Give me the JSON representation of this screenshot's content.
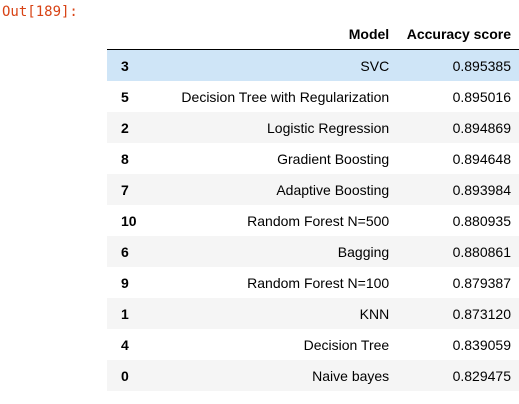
{
  "output_prompt": "Out[189]:",
  "table": {
    "columns": {
      "index": "",
      "model": "Model",
      "accuracy": "Accuracy score"
    },
    "rows": [
      {
        "index": "3",
        "model": "SVC",
        "accuracy": "0.895385"
      },
      {
        "index": "5",
        "model": "Decision Tree with Regularization",
        "accuracy": "0.895016"
      },
      {
        "index": "2",
        "model": "Logistic Regression",
        "accuracy": "0.894869"
      },
      {
        "index": "8",
        "model": "Gradient Boosting",
        "accuracy": "0.894648"
      },
      {
        "index": "7",
        "model": "Adaptive Boosting",
        "accuracy": "0.893984"
      },
      {
        "index": "10",
        "model": "Random Forest N=500",
        "accuracy": "0.880935"
      },
      {
        "index": "6",
        "model": "Bagging",
        "accuracy": "0.880861"
      },
      {
        "index": "9",
        "model": "Random Forest N=100",
        "accuracy": "0.879387"
      },
      {
        "index": "1",
        "model": "KNN",
        "accuracy": "0.873120"
      },
      {
        "index": "4",
        "model": "Decision Tree",
        "accuracy": "0.839059"
      },
      {
        "index": "0",
        "model": "Naive bayes",
        "accuracy": "0.829475"
      }
    ]
  },
  "colors": {
    "prompt": "#d84315",
    "row_stripe": "#f5f5f5",
    "row_hover": "#cfe5f7"
  }
}
